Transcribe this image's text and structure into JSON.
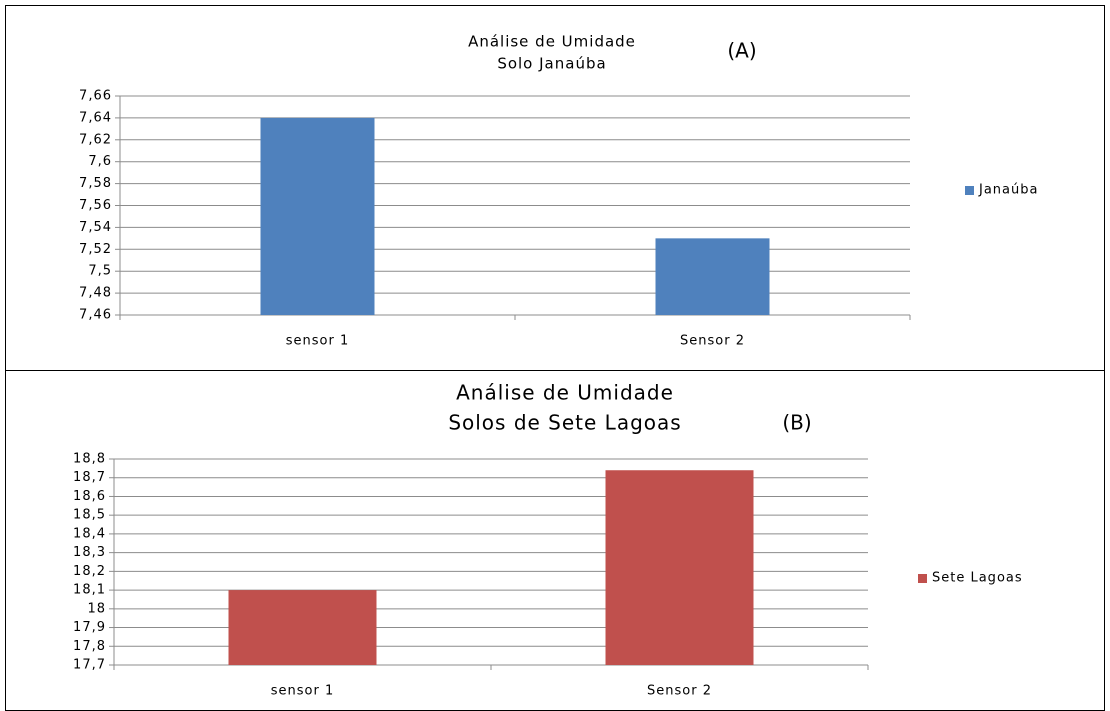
{
  "chart_data": [
    {
      "type": "bar",
      "title": [
        "Análise de Umidade",
        "Solo Janaúba"
      ],
      "annotation": "(A)",
      "categories": [
        "sensor 1",
        "Sensor 2"
      ],
      "series": [
        {
          "name": "Janaúba",
          "color": "#4f81bd",
          "values": [
            7.64,
            7.53
          ]
        }
      ],
      "ylim": [
        7.46,
        7.66
      ],
      "yticks": [
        {
          "value": 7.46,
          "label": "7,46"
        },
        {
          "value": 7.48,
          "label": "7,48"
        },
        {
          "value": 7.5,
          "label": "7,5"
        },
        {
          "value": 7.52,
          "label": "7,52"
        },
        {
          "value": 7.54,
          "label": "7,54"
        },
        {
          "value": 7.56,
          "label": "7,56"
        },
        {
          "value": 7.58,
          "label": "7,58"
        },
        {
          "value": 7.6,
          "label": "7,6"
        },
        {
          "value": 7.62,
          "label": "7,62"
        },
        {
          "value": 7.64,
          "label": "7,64"
        },
        {
          "value": 7.66,
          "label": "7,66"
        }
      ],
      "grid": true,
      "legend": "right"
    },
    {
      "type": "bar",
      "title": [
        "Análise de Umidade",
        "Solos de Sete Lagoas"
      ],
      "annotation": "(B)",
      "categories": [
        "sensor 1",
        "Sensor 2"
      ],
      "series": [
        {
          "name": "Sete Lagoas",
          "color": "#c0504d",
          "values": [
            18.1,
            18.74
          ]
        }
      ],
      "ylim": [
        17.7,
        18.8
      ],
      "yticks": [
        {
          "value": 17.7,
          "label": "17,7"
        },
        {
          "value": 17.8,
          "label": "17,8"
        },
        {
          "value": 17.9,
          "label": "17,9"
        },
        18,
        {
          "value": 18.1,
          "label": "18,1"
        },
        {
          "value": 18.2,
          "label": "18,2"
        },
        {
          "value": 18.3,
          "label": "18,3"
        },
        {
          "value": 18.4,
          "label": "18,4"
        },
        {
          "value": 18.5,
          "label": "18,5"
        },
        {
          "value": 18.6,
          "label": "18,6"
        },
        {
          "value": 18.7,
          "label": "18,7"
        },
        {
          "value": 18.8,
          "label": "18,8"
        }
      ],
      "grid": true,
      "legend": "right"
    }
  ]
}
